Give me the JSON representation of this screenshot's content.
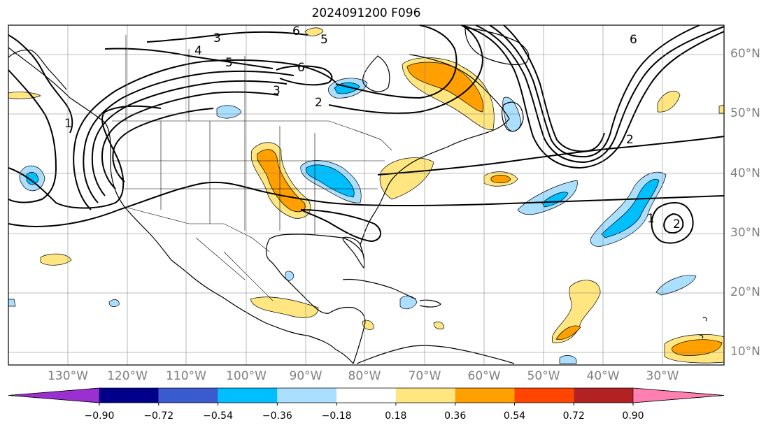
{
  "title": "2024091200 F096",
  "lat_labels": [
    "60°N",
    "50°N",
    "40°N",
    "30°N",
    "20°N",
    "10°N"
  ],
  "lon_labels": [
    "130°W",
    "120°W",
    "110°W",
    "100°W",
    "90°W",
    "80°W",
    "70°W",
    "60°W",
    "50°W",
    "40°W",
    "30°W"
  ],
  "colorbar": {
    "tick_labels": [
      "−0.90",
      "−0.72",
      "−0.54",
      "−0.36",
      "−0.18",
      "0.18",
      "0.36",
      "0.54",
      "0.72",
      "0.90"
    ],
    "colors": [
      "#9b30d0",
      "#00008b",
      "#3a5bd0",
      "#00bfff",
      "#aadfff",
      "#ffffff",
      "#ffe680",
      "#ffa000",
      "#ff4500",
      "#b22222",
      "#ff80b0"
    ]
  },
  "contour_labels": [
    "3",
    "4",
    "5",
    "6",
    "2",
    "1",
    "6",
    "5",
    "3",
    "2",
    "6",
    "1",
    "2"
  ],
  "map": {
    "projection": "PlateCarree",
    "extent": {
      "lon_min": -141,
      "lon_max": -20,
      "lat_min": 8,
      "lat_max": 65
    },
    "features": [
      "coastlines",
      "borders",
      "states",
      "gridlines"
    ],
    "contour_color": "#000000",
    "fill_colors": {
      "light_blue": "#aadfff",
      "blue": "#00bfff",
      "yellow": "#ffe680",
      "orange": "#ffa000"
    }
  }
}
